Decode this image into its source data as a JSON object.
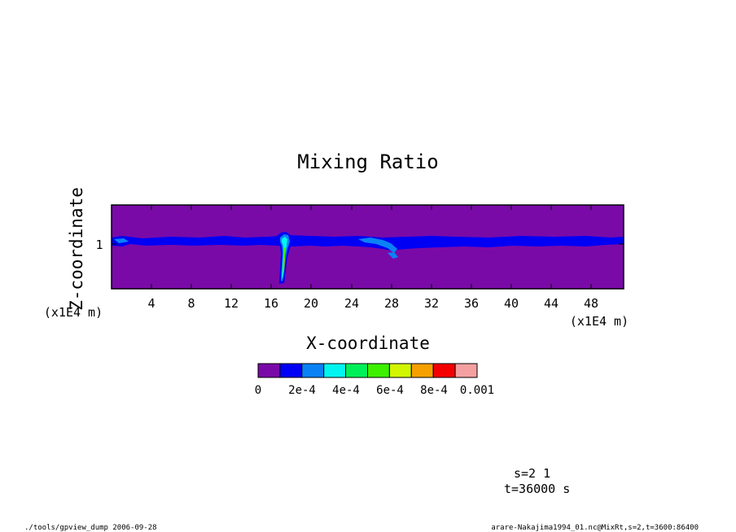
{
  "chart_data": {
    "type": "heatmap",
    "title": "Mixing Ratio",
    "xlabel": "X-coordinate",
    "ylabel": "Z-coordinate",
    "x_unit": "(x1E4 m)",
    "y_unit": "(x1E4 m)",
    "xlim": [
      0,
      51.2
    ],
    "ylim": [
      0,
      1.6
    ],
    "x_ticks": [
      "4",
      "8",
      "12",
      "16",
      "20",
      "24",
      "28",
      "32",
      "36",
      "40",
      "44",
      "48"
    ],
    "y_ticks": [
      "1"
    ],
    "colorbar": {
      "labels": [
        "0",
        "2e-4",
        "4e-4",
        "6e-4",
        "8e-4",
        "0.001"
      ],
      "levels": [
        0,
        0.0001,
        0.0002,
        0.0003,
        0.0004,
        0.0005,
        0.0006,
        0.0007,
        0.0008,
        0.0009,
        0.001
      ],
      "colors": [
        "#7a0aa8",
        "#0000f5",
        "#0a82f5",
        "#00f5f0",
        "#00f05a",
        "#3cf000",
        "#d2f500",
        "#f5a000",
        "#f50000",
        "#f5a0a0"
      ]
    },
    "features": [
      {
        "kind": "layer",
        "x_range": [
          0,
          51.2
        ],
        "z_range": [
          0.85,
          1.0
        ],
        "level": "1e-4 to 2e-4"
      },
      {
        "kind": "plume",
        "x_range": [
          16.5,
          18.0
        ],
        "z_range": [
          0.1,
          1.05
        ],
        "max_level": "8e-4"
      },
      {
        "kind": "patch",
        "x_range": [
          23,
          29
        ],
        "z_range": [
          0.6,
          1.0
        ],
        "level": "2e-4 to 4e-4"
      }
    ]
  },
  "info": {
    "line1": "s=2 1",
    "line2": "t=36000 s"
  },
  "footer": {
    "left": "./tools/gpview_dump  2006-09-28",
    "right": "arare-Nakajima1994_01.nc@MixRt,s=2,t=3600:86400"
  }
}
